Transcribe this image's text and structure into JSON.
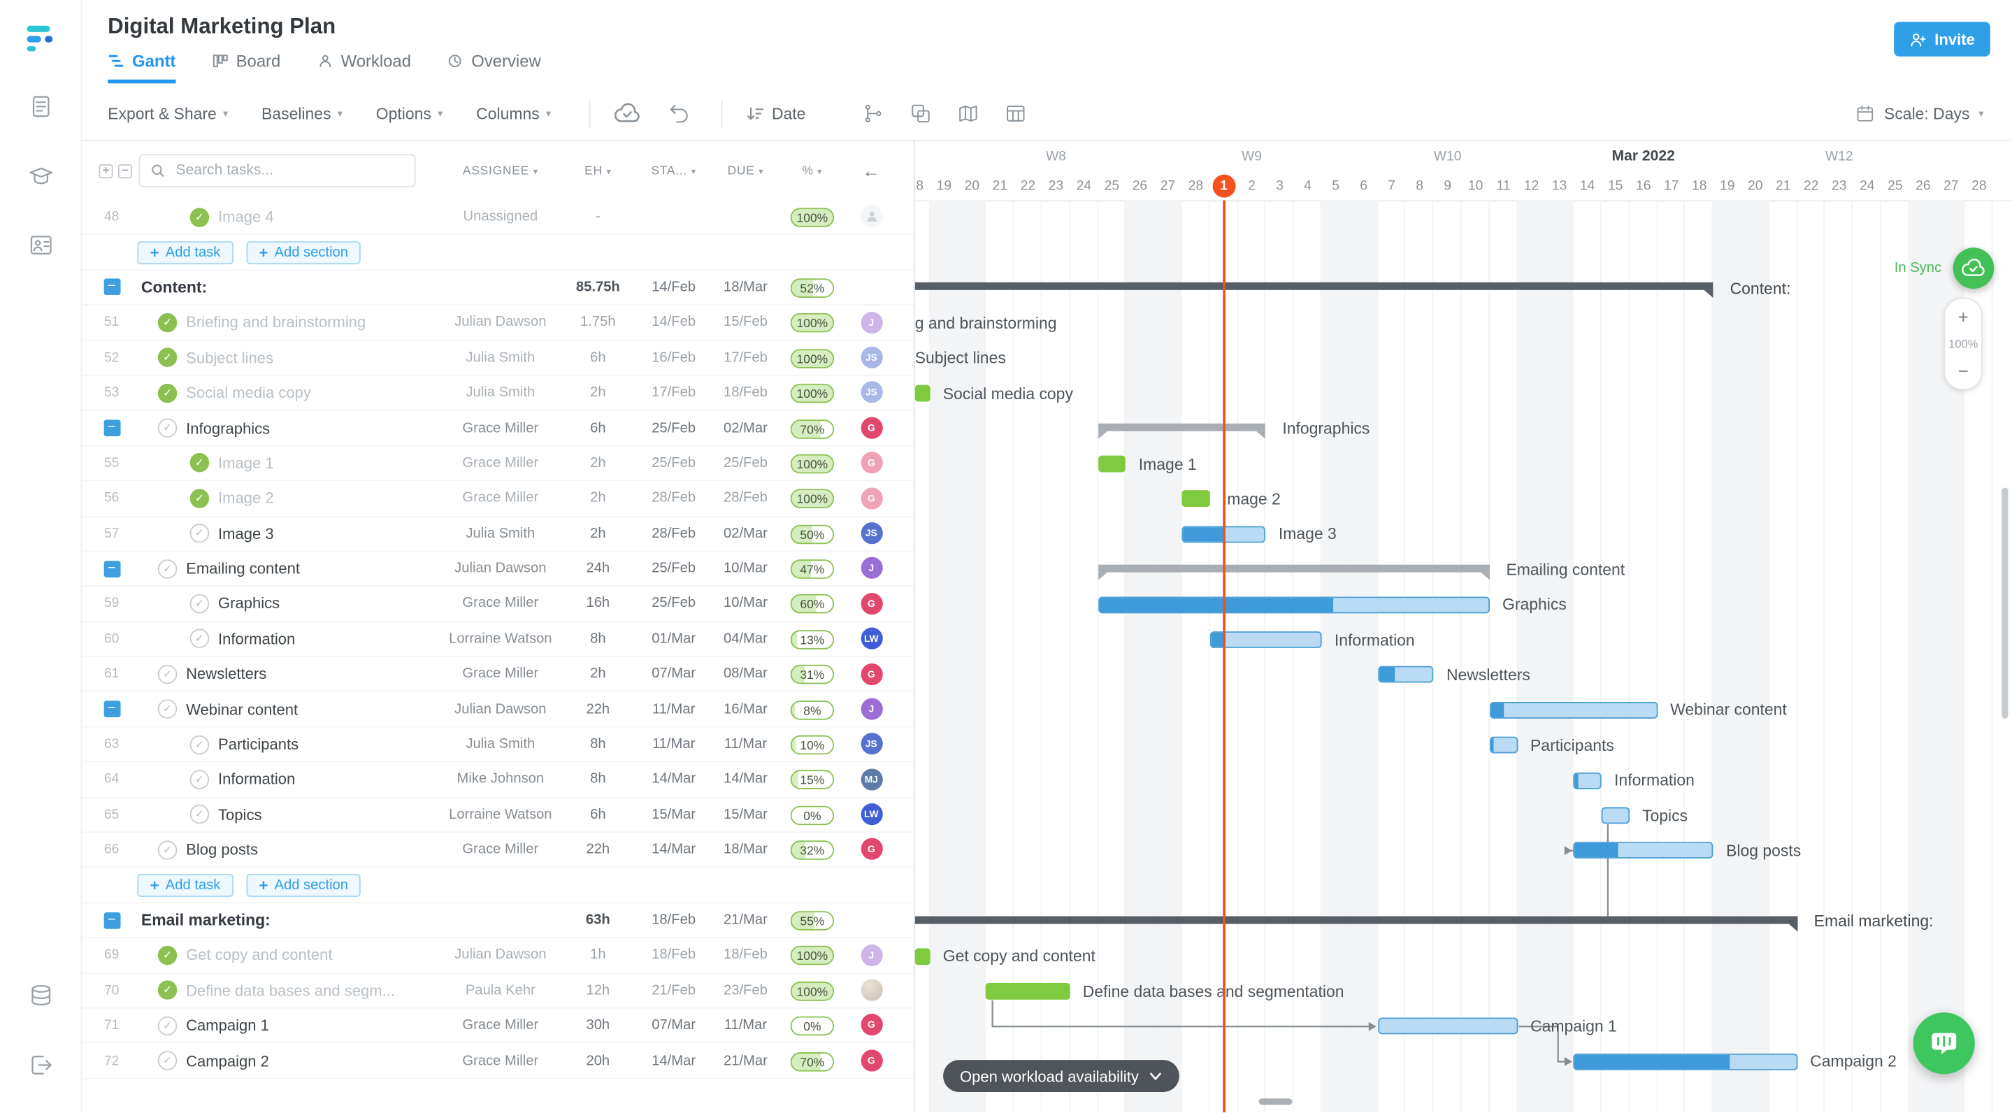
{
  "app": {
    "title": "Digital Marketing Plan",
    "invite": "Invite"
  },
  "tabs": [
    {
      "label": "Gantt",
      "active": true
    },
    {
      "label": "Board"
    },
    {
      "label": "Workload"
    },
    {
      "label": "Overview"
    }
  ],
  "toolbar": {
    "menus": [
      "Export & Share",
      "Baselines",
      "Options",
      "Columns"
    ],
    "date": "Date",
    "scale": "Scale: Days"
  },
  "colors": {
    "accent": "#2f9fe8",
    "green_bar": "#7ecb3f",
    "blue_fill": "#3e9ad8",
    "blue_bg": "#b9dcf4",
    "summary": "#575e65",
    "subsummary": "#a9aeb4",
    "today": "#eb5222",
    "pill_fill": "#d5edbf",
    "pill_border": "#8cc152",
    "sync_green": "#43c157"
  },
  "table": {
    "search_placeholder": "Search tasks...",
    "headers": {
      "assignee": "ASSIGNEE",
      "eh": "EH",
      "start": "STA...",
      "due": "DUE",
      "pct": "%"
    },
    "add_task": "Add task",
    "add_section": "Add section",
    "rows": [
      {
        "t": "task",
        "num": "48",
        "lvl": 2,
        "check": "done",
        "dim": true,
        "name": "Image 4",
        "assignee": "Unassigned",
        "eh": "-",
        "start": "",
        "due": "",
        "pct": 100,
        "av": {
          "kind": "unassigned"
        }
      },
      {
        "t": "add"
      },
      {
        "t": "section",
        "collapse": true,
        "name": "Content:",
        "eh": "85.75h",
        "start": "14/Feb",
        "due": "18/Mar",
        "pct": 52
      },
      {
        "t": "task",
        "num": "51",
        "lvl": 1,
        "check": "done",
        "dim": true,
        "name": "Briefing and brainstorming",
        "assignee": "Julian Dawson",
        "eh": "1.75h",
        "start": "14/Feb",
        "due": "15/Feb",
        "pct": 100,
        "av": {
          "kind": "init",
          "txt": "J",
          "color": "#9b6dd6"
        }
      },
      {
        "t": "task",
        "num": "52",
        "lvl": 1,
        "check": "done",
        "dim": true,
        "name": "Subject lines",
        "assignee": "Julia Smith",
        "eh": "6h",
        "start": "16/Feb",
        "due": "17/Feb",
        "pct": 100,
        "av": {
          "kind": "init",
          "txt": "JS",
          "color": "#5572cf"
        }
      },
      {
        "t": "task",
        "num": "53",
        "lvl": 1,
        "check": "done",
        "dim": true,
        "name": "Social media copy",
        "assignee": "Julia Smith",
        "eh": "2h",
        "start": "17/Feb",
        "due": "18/Feb",
        "pct": 100,
        "av": {
          "kind": "init",
          "txt": "JS",
          "color": "#5572cf"
        }
      },
      {
        "t": "task",
        "collapse": true,
        "lvl": 1,
        "check": "open",
        "name": "Infographics",
        "assignee": "Grace Miller",
        "eh": "6h",
        "start": "25/Feb",
        "due": "02/Mar",
        "pct": 70,
        "av": {
          "kind": "init",
          "txt": "G",
          "color": "#e2476e"
        }
      },
      {
        "t": "task",
        "num": "55",
        "lvl": 2,
        "check": "done",
        "dim": true,
        "name": "Image 1",
        "assignee": "Grace Miller",
        "eh": "2h",
        "start": "25/Feb",
        "due": "25/Feb",
        "pct": 100,
        "av": {
          "kind": "init",
          "txt": "G",
          "color": "#e2476e"
        }
      },
      {
        "t": "task",
        "num": "56",
        "lvl": 2,
        "check": "done",
        "dim": true,
        "name": "Image 2",
        "assignee": "Grace Miller",
        "eh": "2h",
        "start": "28/Feb",
        "due": "28/Feb",
        "pct": 100,
        "av": {
          "kind": "init",
          "txt": "G",
          "color": "#e2476e"
        }
      },
      {
        "t": "task",
        "num": "57",
        "lvl": 2,
        "check": "open",
        "name": "Image 3",
        "assignee": "Julia Smith",
        "eh": "2h",
        "start": "28/Feb",
        "due": "02/Mar",
        "pct": 50,
        "av": {
          "kind": "init",
          "txt": "JS",
          "color": "#5572cf"
        }
      },
      {
        "t": "task",
        "collapse": true,
        "lvl": 1,
        "check": "open",
        "name": "Emailing content",
        "assignee": "Julian Dawson",
        "eh": "24h",
        "start": "25/Feb",
        "due": "10/Mar",
        "pct": 47,
        "av": {
          "kind": "init",
          "txt": "J",
          "color": "#9b6dd6"
        }
      },
      {
        "t": "task",
        "num": "59",
        "lvl": 2,
        "check": "open",
        "name": "Graphics",
        "assignee": "Grace Miller",
        "eh": "16h",
        "start": "25/Feb",
        "due": "10/Mar",
        "pct": 60,
        "av": {
          "kind": "init",
          "txt": "G",
          "color": "#e2476e"
        }
      },
      {
        "t": "task",
        "num": "60",
        "lvl": 2,
        "check": "open",
        "name": "Information",
        "assignee": "Lorraine Watson",
        "eh": "8h",
        "start": "01/Mar",
        "due": "04/Mar",
        "pct": 13,
        "av": {
          "kind": "init",
          "txt": "LW",
          "color": "#3f5ed6"
        }
      },
      {
        "t": "task",
        "num": "61",
        "lvl": 1,
        "check": "open",
        "name": "Newsletters",
        "assignee": "Grace Miller",
        "eh": "2h",
        "start": "07/Mar",
        "due": "08/Mar",
        "pct": 31,
        "av": {
          "kind": "init",
          "txt": "G",
          "color": "#e2476e"
        }
      },
      {
        "t": "task",
        "collapse": true,
        "lvl": 1,
        "check": "open",
        "name": "Webinar content",
        "assignee": "Julian Dawson",
        "eh": "22h",
        "start": "11/Mar",
        "due": "16/Mar",
        "pct": 8,
        "av": {
          "kind": "init",
          "txt": "J",
          "color": "#9b6dd6"
        }
      },
      {
        "t": "task",
        "num": "63",
        "lvl": 2,
        "check": "open",
        "name": "Participants",
        "assignee": "Julia Smith",
        "eh": "8h",
        "start": "11/Mar",
        "due": "11/Mar",
        "pct": 10,
        "av": {
          "kind": "init",
          "txt": "JS",
          "color": "#5572cf"
        }
      },
      {
        "t": "task",
        "num": "64",
        "lvl": 2,
        "check": "open",
        "name": "Information",
        "assignee": "Mike Johnson",
        "eh": "8h",
        "start": "14/Mar",
        "due": "14/Mar",
        "pct": 15,
        "av": {
          "kind": "init",
          "txt": "MJ",
          "color": "#5c7ba6"
        }
      },
      {
        "t": "task",
        "num": "65",
        "lvl": 2,
        "check": "open",
        "name": "Topics",
        "assignee": "Lorraine Watson",
        "eh": "6h",
        "start": "15/Mar",
        "due": "15/Mar",
        "pct": 0,
        "av": {
          "kind": "init",
          "txt": "LW",
          "color": "#3f5ed6"
        }
      },
      {
        "t": "task",
        "num": "66",
        "lvl": 1,
        "check": "open",
        "name": "Blog posts",
        "assignee": "Grace Miller",
        "eh": "22h",
        "start": "14/Mar",
        "due": "18/Mar",
        "pct": 32,
        "av": {
          "kind": "init",
          "txt": "G",
          "color": "#e2476e"
        }
      },
      {
        "t": "add"
      },
      {
        "t": "section",
        "collapse": true,
        "name": "Email marketing:",
        "eh": "63h",
        "start": "18/Feb",
        "due": "21/Mar",
        "pct": 55
      },
      {
        "t": "task",
        "num": "69",
        "lvl": 1,
        "check": "done",
        "dim": true,
        "name": "Get copy and content",
        "assignee": "Julian Dawson",
        "eh": "1h",
        "start": "18/Feb",
        "due": "18/Feb",
        "pct": 100,
        "av": {
          "kind": "init",
          "txt": "J",
          "color": "#9b6dd6"
        }
      },
      {
        "t": "task",
        "num": "70",
        "lvl": 1,
        "check": "done",
        "dim": true,
        "name": "Define data bases and segm...",
        "assignee": "Paula Kehr",
        "eh": "12h",
        "start": "21/Feb",
        "due": "23/Feb",
        "pct": 100,
        "av": {
          "kind": "photo"
        }
      },
      {
        "t": "task",
        "num": "71",
        "lvl": 1,
        "check": "open",
        "name": "Campaign 1",
        "assignee": "Grace Miller",
        "eh": "30h",
        "start": "07/Mar",
        "due": "11/Mar",
        "pct": 0,
        "av": {
          "kind": "init",
          "txt": "G",
          "color": "#e2476e"
        }
      },
      {
        "t": "task",
        "num": "72",
        "lvl": 1,
        "check": "open",
        "name": "Campaign 2",
        "assignee": "Grace Miller",
        "eh": "20h",
        "start": "14/Mar",
        "due": "21/Mar",
        "pct": 70,
        "av": {
          "kind": "init",
          "txt": "G",
          "color": "#e2476e"
        }
      }
    ]
  },
  "gantt": {
    "layout": {
      "dayWidth": 21.8,
      "clip": 10,
      "rowH": 27.4,
      "barH": 13
    },
    "weeks": [
      {
        "label": "W8",
        "start": 2,
        "len": 7
      },
      {
        "label": "W9",
        "start": 9,
        "len": 7
      },
      {
        "label": "W10",
        "start": 16,
        "len": 7
      },
      {
        "label": "Mar 2022",
        "start": 23,
        "len": 7,
        "bold": true
      },
      {
        "label": "W12",
        "start": 30,
        "len": 7
      }
    ],
    "days": [
      {
        "d": "18"
      },
      {
        "d": "19",
        "w": true
      },
      {
        "d": "20",
        "w": true
      },
      {
        "d": "21"
      },
      {
        "d": "22"
      },
      {
        "d": "23"
      },
      {
        "d": "24"
      },
      {
        "d": "25"
      },
      {
        "d": "26",
        "w": true
      },
      {
        "d": "27",
        "w": true
      },
      {
        "d": "28"
      },
      {
        "d": "1",
        "today": true
      },
      {
        "d": "2"
      },
      {
        "d": "3"
      },
      {
        "d": "4"
      },
      {
        "d": "5",
        "w": true
      },
      {
        "d": "6",
        "w": true
      },
      {
        "d": "7"
      },
      {
        "d": "8"
      },
      {
        "d": "9"
      },
      {
        "d": "10"
      },
      {
        "d": "11"
      },
      {
        "d": "12",
        "w": true
      },
      {
        "d": "13",
        "w": true
      },
      {
        "d": "14"
      },
      {
        "d": "15"
      },
      {
        "d": "16"
      },
      {
        "d": "17"
      },
      {
        "d": "18"
      },
      {
        "d": "19",
        "w": true
      },
      {
        "d": "20",
        "w": true
      },
      {
        "d": "21"
      },
      {
        "d": "22"
      },
      {
        "d": "23"
      },
      {
        "d": "24"
      },
      {
        "d": "25"
      },
      {
        "d": "26",
        "w": true
      },
      {
        "d": "27",
        "w": true
      },
      {
        "d": "28"
      }
    ],
    "bars": [
      {
        "row": 2,
        "type": "summary",
        "start": -2,
        "len": 31,
        "label": "Content:"
      },
      {
        "row": 3,
        "type": "label",
        "x": 0,
        "label": "g and brainstorming"
      },
      {
        "row": 4,
        "type": "label",
        "x": 0,
        "label": "Subject lines"
      },
      {
        "row": 5,
        "type": "green",
        "start": -1,
        "len": 2,
        "label": "Social media copy"
      },
      {
        "row": 6,
        "type": "subsummary",
        "start": 7,
        "len": 6,
        "label": "Infographics"
      },
      {
        "row": 7,
        "type": "green",
        "start": 7,
        "len": 1,
        "label": "Image 1"
      },
      {
        "row": 8,
        "type": "green",
        "start": 10,
        "len": 1,
        "label": "Image 2"
      },
      {
        "row": 9,
        "type": "blue",
        "start": 10,
        "len": 3,
        "progress": 50,
        "label": "Image 3"
      },
      {
        "row": 10,
        "type": "subsummary",
        "start": 7,
        "len": 14,
        "label": "Emailing content"
      },
      {
        "row": 11,
        "type": "blue",
        "start": 7,
        "len": 14,
        "progress": 60,
        "label": "Graphics"
      },
      {
        "row": 12,
        "type": "blue",
        "start": 11,
        "len": 4,
        "progress": 13,
        "label": "Information"
      },
      {
        "row": 13,
        "type": "blue",
        "start": 17,
        "len": 2,
        "progress": 31,
        "label": "Newsletters"
      },
      {
        "row": 14,
        "type": "blue",
        "start": 21,
        "len": 6,
        "progress": 8,
        "label": "Webinar content"
      },
      {
        "row": 15,
        "type": "blue",
        "start": 21,
        "len": 1,
        "progress": 10,
        "label": "Participants"
      },
      {
        "row": 16,
        "type": "blue",
        "start": 24,
        "len": 1,
        "progress": 15,
        "label": "Information"
      },
      {
        "row": 17,
        "type": "blue",
        "start": 25,
        "len": 1,
        "progress": 0,
        "label": "Topics"
      },
      {
        "row": 18,
        "type": "blue",
        "start": 24,
        "len": 5,
        "progress": 32,
        "label": "Blog posts"
      },
      {
        "row": 20,
        "type": "summary",
        "start": 0,
        "len": 32,
        "label": "Email marketing:"
      },
      {
        "row": 21,
        "type": "green",
        "start": 0,
        "len": 1,
        "label": "Get copy and content"
      },
      {
        "row": 22,
        "type": "green",
        "start": 3,
        "len": 3,
        "label": "Define data bases and segmentation"
      },
      {
        "row": 23,
        "type": "blue",
        "start": 17,
        "len": 5,
        "progress": 0,
        "label": "Campaign 1"
      },
      {
        "row": 24,
        "type": "blue",
        "start": 24,
        "len": 8,
        "progress": 70,
        "label": "Campaign 2"
      }
    ],
    "connectors": [
      {
        "from": 15,
        "to": 16,
        "kind": "downRight"
      },
      {
        "from": 15,
        "to": 17,
        "kind": "downRight"
      },
      {
        "from": 19,
        "to": 20,
        "kind": "downRight"
      },
      {
        "from": 20,
        "to": 21,
        "kind": "endRight"
      },
      {
        "from": 21,
        "to": 22,
        "kind": "endRight"
      }
    ]
  },
  "floating": {
    "in_sync": "In Sync",
    "zoom_in": "+",
    "zoom_level": "100%",
    "zoom_out": "−",
    "workload": "Open workload availability"
  }
}
